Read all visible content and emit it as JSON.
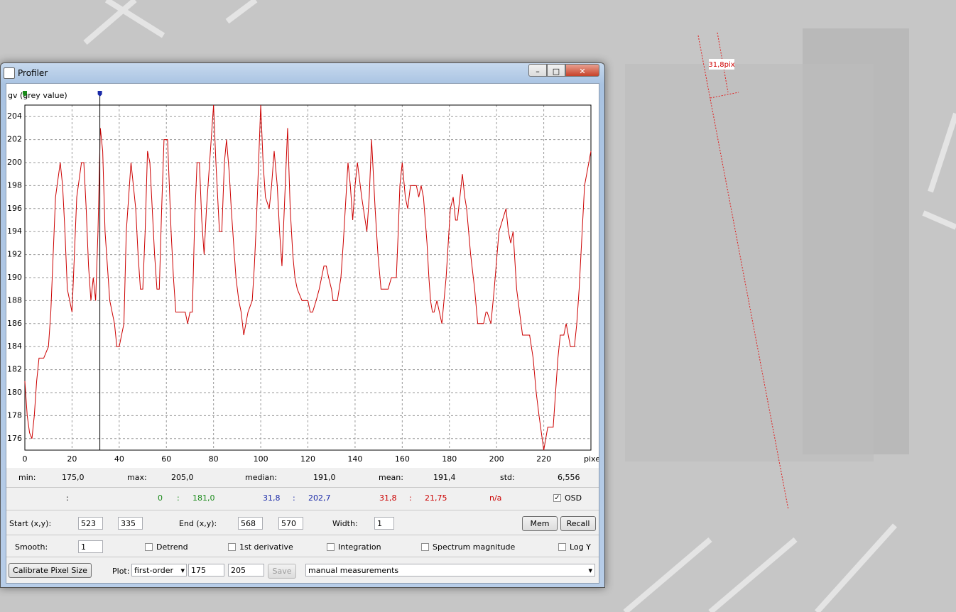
{
  "window": {
    "title": "Profiler"
  },
  "chart_data": {
    "type": "line",
    "ylabel": "gv (grey value)",
    "xlabel": "pixel",
    "color": "#cc0000",
    "grid": true,
    "xlim": [
      0,
      240
    ],
    "ylim": [
      175,
      205
    ],
    "xticks": [
      0,
      20,
      40,
      60,
      80,
      100,
      120,
      140,
      160,
      180,
      200,
      220
    ],
    "yticks": [
      176,
      178,
      180,
      182,
      184,
      186,
      188,
      190,
      192,
      194,
      196,
      198,
      200,
      202,
      204
    ],
    "cursors": [
      {
        "x": 0,
        "color": "#1a8a1a"
      },
      {
        "x": 31.8,
        "color": "#1a2aa8"
      }
    ],
    "x": [
      0,
      1,
      2,
      3,
      4,
      5,
      6,
      8,
      10,
      11,
      12,
      13,
      15,
      16,
      17,
      18,
      20,
      21,
      22,
      24,
      25,
      26,
      27,
      28,
      29,
      30,
      31,
      32,
      33,
      34,
      35,
      36,
      38,
      39,
      40,
      41,
      42,
      43,
      45,
      46,
      47,
      48,
      49,
      50,
      51,
      52,
      53,
      54,
      55,
      56,
      57,
      58,
      59,
      60.5,
      62,
      63,
      64,
      66,
      68,
      69,
      70,
      71,
      72,
      73,
      74,
      75,
      76,
      77,
      78,
      80,
      81,
      82,
      82.5,
      83.5,
      84.6,
      85.5,
      86.7,
      87.5,
      88.5,
      89.5,
      90.7,
      91.7,
      92.8,
      93.7,
      94.6,
      96.4,
      97.3,
      98.2,
      100,
      101,
      102,
      103.6,
      104.6,
      105.7,
      107,
      108,
      109,
      110,
      111.4,
      112.5,
      113.6,
      114.5,
      115.5,
      117.5,
      119,
      120,
      121,
      122,
      123.5,
      124.8,
      126.8,
      127.8,
      128.8,
      130,
      130.7,
      132.5,
      134,
      135,
      137,
      138,
      139,
      140,
      141,
      142.8,
      145,
      146,
      147,
      148.5,
      149.7,
      151,
      154,
      155.4,
      157.5,
      158.3,
      159,
      160,
      161.3,
      162.3,
      163.5,
      166,
      167,
      168,
      169,
      170.5,
      171.3,
      172,
      172.8,
      173.5,
      174.7,
      176.8,
      177.7,
      178.6,
      180.4,
      181.6,
      182.6,
      183.4,
      185.5,
      186.5,
      187.3,
      189,
      190.7,
      192,
      194.5,
      195.5,
      196,
      197.6,
      199,
      201,
      202.5,
      204,
      205,
      206,
      207,
      208.5,
      211,
      214,
      215.5,
      216.8,
      218,
      220,
      221.7,
      224,
      226,
      227,
      228.5,
      229.5,
      231.3,
      233,
      234,
      235,
      237.3,
      240
    ],
    "values": [
      181,
      178,
      176.5,
      176,
      178,
      181,
      183,
      183,
      184,
      187,
      192,
      197,
      200,
      198,
      194,
      189,
      187,
      192,
      197,
      200,
      200,
      196,
      191,
      188,
      190,
      188,
      194,
      203,
      201,
      194,
      191,
      188,
      186,
      184,
      184,
      185,
      186,
      194,
      200,
      198,
      196,
      192,
      189,
      189,
      194,
      201,
      200,
      196,
      192,
      189,
      189,
      196,
      202,
      202,
      194,
      190,
      187,
      187,
      187,
      186,
      187,
      187,
      195,
      200,
      200,
      195,
      192,
      196,
      199,
      205,
      200,
      196,
      194,
      194,
      200,
      202,
      199,
      196,
      193,
      190,
      188,
      187,
      185,
      186,
      187,
      188,
      191,
      195,
      205,
      200,
      197,
      196,
      198,
      201,
      198,
      194,
      191,
      196,
      203,
      196,
      192,
      190,
      189,
      188,
      188,
      188,
      187,
      187,
      188,
      189,
      191,
      191,
      190,
      189,
      188,
      188,
      190,
      193,
      200,
      198,
      195,
      198,
      200,
      197,
      194,
      197,
      202,
      196,
      192,
      189,
      189,
      190,
      190,
      194,
      198,
      200,
      197,
      196,
      198,
      198,
      197,
      198,
      197,
      193,
      190,
      188,
      187,
      187,
      188,
      186,
      188,
      190,
      196,
      197,
      195,
      195,
      199,
      197,
      196,
      192,
      189,
      186,
      186,
      187,
      187,
      186,
      189,
      194,
      195,
      196,
      194,
      193,
      194,
      189,
      185,
      185,
      183,
      180,
      178,
      175,
      177,
      177,
      183,
      185,
      185,
      186,
      184,
      184,
      186,
      189,
      198,
      201
    ]
  },
  "stats": [
    {
      "label": "min:",
      "value": "175,0"
    },
    {
      "label": "max:",
      "value": "205,0"
    },
    {
      "label": "median:",
      "value": "191,0"
    },
    {
      "label": "mean:",
      "value": "191,4"
    },
    {
      "label": "std:",
      "value": "6,556"
    }
  ],
  "readout": [
    {
      "text": ":",
      "color": "#000000"
    },
    {
      "text": "0",
      "color": "#1a8a1a"
    },
    {
      "text": ":",
      "color": "#1a8a1a"
    },
    {
      "text": "181,0",
      "color": "#1a8a1a"
    },
    {
      "text": "31,8",
      "color": "#1a2aa8"
    },
    {
      "text": ":",
      "color": "#1a2aa8"
    },
    {
      "text": "202,7",
      "color": "#1a2aa8"
    },
    {
      "text": "31,8",
      "color": "#cc0000"
    },
    {
      "text": ":",
      "color": "#cc0000"
    },
    {
      "text": "21,75",
      "color": "#cc0000"
    },
    {
      "text": "n/a",
      "color": "#cc0000"
    }
  ],
  "osd": {
    "label": "OSD",
    "checked": true
  },
  "controls": {
    "start_label": "Start (x,y):",
    "start_x": "523",
    "start_y": "335",
    "end_label": "End (x,y):",
    "end_x": "568",
    "end_y": "570",
    "width_label": "Width:",
    "width": "1",
    "mem": "Mem",
    "recall": "Recall",
    "smooth_label": "Smooth:",
    "smooth": "1",
    "checkboxes": [
      {
        "label": "Detrend",
        "checked": false
      },
      {
        "label": "1st derivative",
        "checked": false
      },
      {
        "label": "Integration",
        "checked": false
      },
      {
        "label": "Spectrum magnitude",
        "checked": false
      },
      {
        "label": "Log Y",
        "checked": false
      }
    ],
    "calibrate": "Calibrate Pixel Size",
    "plot_label": "Plot:",
    "plot_mode": "first-order",
    "plot_min": "175",
    "plot_max": "205",
    "save": "Save",
    "measure_mode": "manual measurements"
  },
  "overlay": {
    "label": "31,8pix"
  }
}
